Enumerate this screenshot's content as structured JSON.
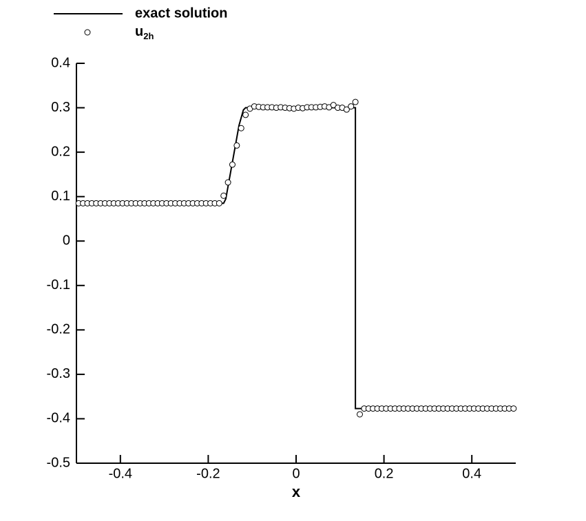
{
  "chart_data": {
    "type": "line-scatter",
    "xlabel": "x",
    "xlim": [
      -0.5,
      0.5
    ],
    "xticks": [
      -0.4,
      -0.2,
      0,
      0.2,
      0.4
    ],
    "ylim": [
      -0.5,
      0.4
    ],
    "yticks": [
      0.4,
      0.3,
      0.2,
      0.1,
      0,
      -0.1,
      -0.2,
      -0.3,
      -0.4,
      -0.5
    ],
    "series": [
      {
        "name": "exact solution",
        "kind": "line",
        "color": "#000000",
        "x": [
          -0.5,
          -0.165,
          -0.16,
          -0.15,
          -0.13,
          -0.12,
          -0.115,
          0.135,
          0.135,
          0.5
        ],
        "values": [
          0.085,
          0.085,
          0.095,
          0.15,
          0.26,
          0.295,
          0.3,
          0.3,
          -0.377,
          -0.377
        ]
      },
      {
        "name": "u",
        "name_subscript": "2h",
        "kind": "scatter",
        "color": "#000000",
        "x": [
          -0.495,
          -0.485,
          -0.475,
          -0.465,
          -0.455,
          -0.445,
          -0.435,
          -0.425,
          -0.415,
          -0.405,
          -0.395,
          -0.385,
          -0.375,
          -0.365,
          -0.355,
          -0.345,
          -0.335,
          -0.325,
          -0.315,
          -0.305,
          -0.295,
          -0.285,
          -0.275,
          -0.265,
          -0.255,
          -0.245,
          -0.235,
          -0.225,
          -0.215,
          -0.205,
          -0.195,
          -0.185,
          -0.175,
          -0.165,
          -0.155,
          -0.145,
          -0.135,
          -0.125,
          -0.115,
          -0.105,
          -0.095,
          -0.085,
          -0.075,
          -0.065,
          -0.055,
          -0.045,
          -0.035,
          -0.025,
          -0.015,
          -0.005,
          0.005,
          0.015,
          0.025,
          0.035,
          0.045,
          0.055,
          0.065,
          0.075,
          0.085,
          0.095,
          0.105,
          0.115,
          0.125,
          0.135,
          0.145,
          0.155,
          0.165,
          0.175,
          0.185,
          0.195,
          0.205,
          0.215,
          0.225,
          0.235,
          0.245,
          0.255,
          0.265,
          0.275,
          0.285,
          0.295,
          0.305,
          0.315,
          0.325,
          0.335,
          0.345,
          0.355,
          0.365,
          0.375,
          0.385,
          0.395,
          0.405,
          0.415,
          0.425,
          0.435,
          0.445,
          0.455,
          0.465,
          0.475,
          0.485,
          0.495
        ],
        "values": [
          0.085,
          0.085,
          0.085,
          0.085,
          0.085,
          0.085,
          0.085,
          0.085,
          0.085,
          0.085,
          0.085,
          0.085,
          0.085,
          0.085,
          0.085,
          0.085,
          0.085,
          0.085,
          0.085,
          0.085,
          0.085,
          0.085,
          0.085,
          0.085,
          0.085,
          0.085,
          0.085,
          0.085,
          0.085,
          0.085,
          0.085,
          0.085,
          0.085,
          0.102,
          0.132,
          0.172,
          0.215,
          0.254,
          0.284,
          0.298,
          0.303,
          0.302,
          0.301,
          0.301,
          0.301,
          0.3,
          0.301,
          0.3,
          0.299,
          0.298,
          0.3,
          0.299,
          0.301,
          0.301,
          0.301,
          0.302,
          0.303,
          0.301,
          0.306,
          0.3,
          0.3,
          0.296,
          0.303,
          0.313,
          -0.39,
          -0.377,
          -0.377,
          -0.377,
          -0.377,
          -0.377,
          -0.377,
          -0.377,
          -0.377,
          -0.377,
          -0.377,
          -0.377,
          -0.377,
          -0.377,
          -0.377,
          -0.377,
          -0.377,
          -0.377,
          -0.377,
          -0.377,
          -0.377,
          -0.377,
          -0.377,
          -0.377,
          -0.377,
          -0.377,
          -0.377,
          -0.377,
          -0.377,
          -0.377,
          -0.377,
          -0.377,
          -0.377,
          -0.377,
          -0.377,
          -0.377
        ]
      }
    ]
  }
}
